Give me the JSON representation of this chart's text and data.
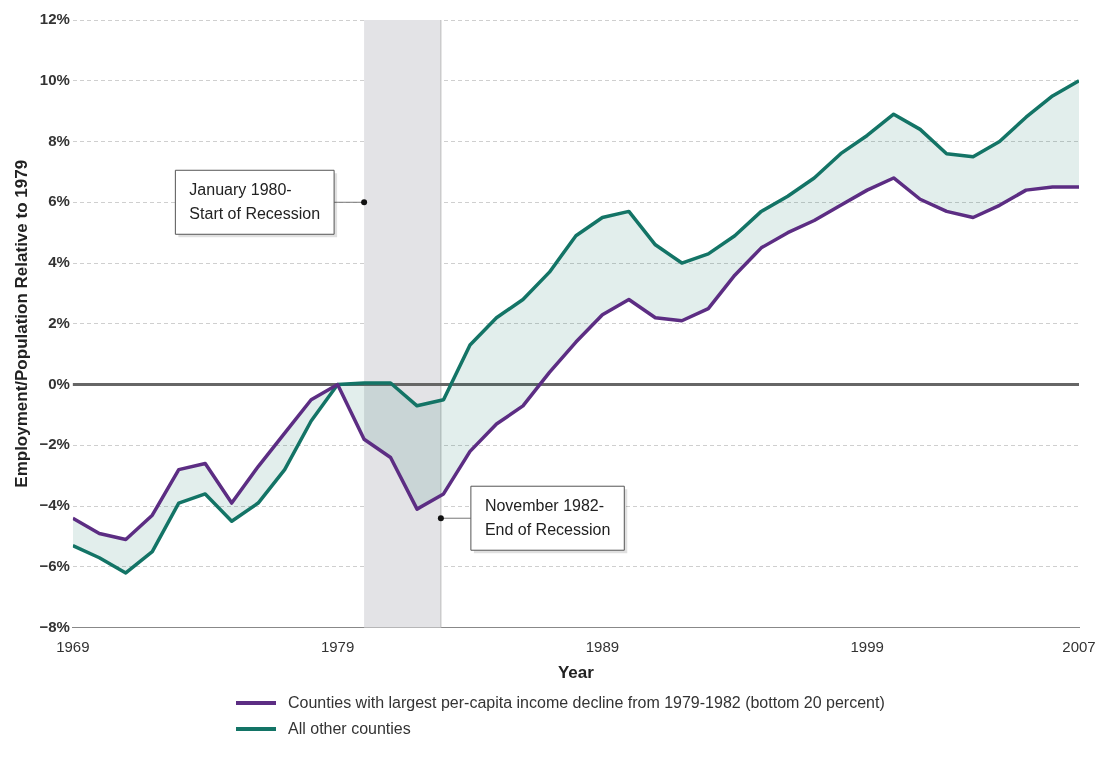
{
  "chart_data": {
    "type": "line",
    "xlabel": "Year",
    "ylabel": "Employment/Population Relative to 1979",
    "x": [
      1969,
      1970,
      1971,
      1972,
      1973,
      1974,
      1975,
      1976,
      1977,
      1978,
      1979,
      1980,
      1981,
      1982,
      1983,
      1984,
      1985,
      1986,
      1987,
      1988,
      1989,
      1990,
      1991,
      1992,
      1993,
      1994,
      1995,
      1996,
      1997,
      1998,
      1999,
      2000,
      2001,
      2002,
      2003,
      2004,
      2005,
      2006,
      2007
    ],
    "series": [
      {
        "name": "Counties with largest per-capita income decline from 1979-1982 (bottom 20 percent)",
        "color": "#5c2d83",
        "values": [
          -4.4,
          -4.9,
          -5.1,
          -4.3,
          -2.8,
          -2.6,
          -3.9,
          -2.7,
          -1.6,
          -0.5,
          0,
          -1.8,
          -2.4,
          -4.1,
          -3.6,
          -2.2,
          -1.3,
          -0.7,
          0.4,
          1.4,
          2.3,
          2.8,
          2.2,
          2.1,
          2.5,
          3.6,
          4.5,
          5.0,
          5.4,
          5.9,
          6.4,
          6.8,
          6.1,
          5.7,
          5.5,
          5.9,
          6.4,
          6.5,
          6.5
        ]
      },
      {
        "name": "All other counties",
        "color": "#137466",
        "values": [
          -5.3,
          -5.7,
          -6.2,
          -5.5,
          -3.9,
          -3.6,
          -4.5,
          -3.9,
          -2.8,
          -1.2,
          0,
          0.05,
          0.05,
          -0.7,
          -0.5,
          1.3,
          2.2,
          2.8,
          3.7,
          4.9,
          5.5,
          5.7,
          4.6,
          4.0,
          4.3,
          4.9,
          5.7,
          6.2,
          6.8,
          7.6,
          8.2,
          8.9,
          8.4,
          7.6,
          7.5,
          8.0,
          8.8,
          9.5,
          10.0
        ]
      }
    ],
    "xlim": [
      1969,
      2007
    ],
    "xticks": [
      1969,
      1979,
      1989,
      1999,
      2007
    ],
    "ylim": [
      -8,
      12
    ],
    "yticks": [
      {
        "value": -8,
        "label": "−8%"
      },
      {
        "value": -6,
        "label": "−6%"
      },
      {
        "value": -4,
        "label": "−4%"
      },
      {
        "value": -2,
        "label": "−2%"
      },
      {
        "value": 0,
        "label": "0%"
      },
      {
        "value": 2,
        "label": "2%"
      },
      {
        "value": 4,
        "label": "4%"
      },
      {
        "value": 6,
        "label": "6%"
      },
      {
        "value": 8,
        "label": "8%"
      },
      {
        "value": 10,
        "label": "10%"
      },
      {
        "value": 12,
        "label": "12%"
      }
    ],
    "bands": [
      {
        "axis": "x",
        "from": 1980,
        "to": 1982.9,
        "label": "January 1980-\nStart of Recession",
        "color": "#e3e3e6"
      }
    ],
    "ref_lines": [
      {
        "axis": "x",
        "value": 1982.9,
        "label": "November 1982-\nEnd of Recession",
        "color": "#bbbbbb"
      },
      {
        "axis": "y",
        "value": 0,
        "color": "#666666"
      }
    ],
    "grid": "y",
    "legend": "bottom",
    "marker": "none",
    "line_style": "solid"
  }
}
